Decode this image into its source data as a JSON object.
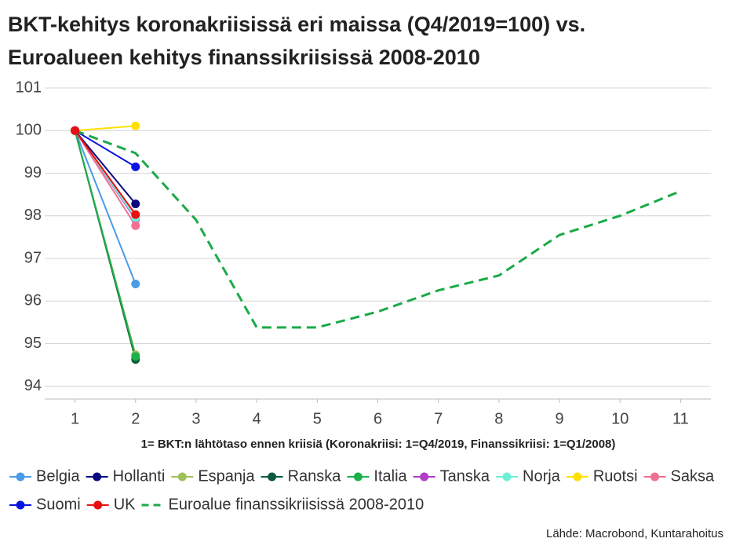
{
  "chart_data": {
    "type": "line",
    "title": [
      "BKT-kehitys koronakriisissä eri maissa (Q4/2019=100) vs.",
      "Euroalueen kehitys finanssikriisissä 2008-2010"
    ],
    "xlabel": "1= BKT:n lähtötaso ennen kriisiä (Koronakriisi: 1=Q4/2019, Finanssikriisi: 1=Q1/2008)",
    "source": "Lähde: Macrobond, Kuntarahoitus",
    "x": [
      1,
      2,
      3,
      4,
      5,
      6,
      7,
      8,
      9,
      10,
      11
    ],
    "xlim": [
      0.5,
      11.5
    ],
    "xticks": [
      1,
      2,
      3,
      4,
      5,
      6,
      7,
      8,
      9,
      10,
      11
    ],
    "ylim": [
      93.7,
      101
    ],
    "yticks": [
      94,
      95,
      96,
      97,
      98,
      99,
      100,
      101
    ],
    "grid": true,
    "legend": "bottom",
    "series": [
      {
        "name": "Belgia",
        "color": "#4a9be8",
        "marker": true,
        "values": [
          100,
          96.4,
          null,
          null,
          null,
          null,
          null,
          null,
          null,
          null,
          null
        ]
      },
      {
        "name": "Hollanti",
        "color": "#0a0a80",
        "marker": true,
        "values": [
          100,
          98.28,
          null,
          null,
          null,
          null,
          null,
          null,
          null,
          null,
          null
        ]
      },
      {
        "name": "Espanja",
        "color": "#9dc15a",
        "marker": true,
        "values": [
          100,
          94.74,
          null,
          null,
          null,
          null,
          null,
          null,
          null,
          null,
          null
        ]
      },
      {
        "name": "Ranska",
        "color": "#0b5a3c",
        "marker": true,
        "values": [
          100,
          94.63,
          null,
          null,
          null,
          null,
          null,
          null,
          null,
          null,
          null
        ]
      },
      {
        "name": "Italia",
        "color": "#1db04b",
        "marker": true,
        "values": [
          100,
          94.7,
          null,
          null,
          null,
          null,
          null,
          null,
          null,
          null,
          null
        ]
      },
      {
        "name": "Tanska",
        "color": "#b03cc8",
        "marker": true,
        "values": [
          100,
          97.92,
          null,
          null,
          null,
          null,
          null,
          null,
          null,
          null,
          null
        ]
      },
      {
        "name": "Norja",
        "color": "#6ef0d8",
        "marker": true,
        "values": [
          100,
          97.95,
          null,
          null,
          null,
          null,
          null,
          null,
          null,
          null,
          null
        ]
      },
      {
        "name": "Ruotsi",
        "color": "#ffe000",
        "marker": true,
        "values": [
          100,
          100.11,
          null,
          null,
          null,
          null,
          null,
          null,
          null,
          null,
          null
        ]
      },
      {
        "name": "Saksa",
        "color": "#f07090",
        "marker": true,
        "values": [
          100,
          97.77,
          null,
          null,
          null,
          null,
          null,
          null,
          null,
          null,
          null
        ]
      },
      {
        "name": "Suomi",
        "color": "#0a14e0",
        "marker": true,
        "values": [
          100,
          99.15,
          null,
          null,
          null,
          null,
          null,
          null,
          null,
          null,
          null
        ]
      },
      {
        "name": "UK",
        "color": "#e81010",
        "marker": true,
        "values": [
          100,
          98.03,
          null,
          null,
          null,
          null,
          null,
          null,
          null,
          null,
          null
        ]
      },
      {
        "name": "Euroalue finanssikriisissä 2008-2010",
        "color": "#1aaa48",
        "marker": false,
        "dash": "dashed",
        "values": [
          100,
          99.47,
          97.9,
          95.38,
          95.38,
          95.75,
          96.25,
          96.6,
          97.55,
          98.0,
          98.58
        ]
      }
    ]
  }
}
